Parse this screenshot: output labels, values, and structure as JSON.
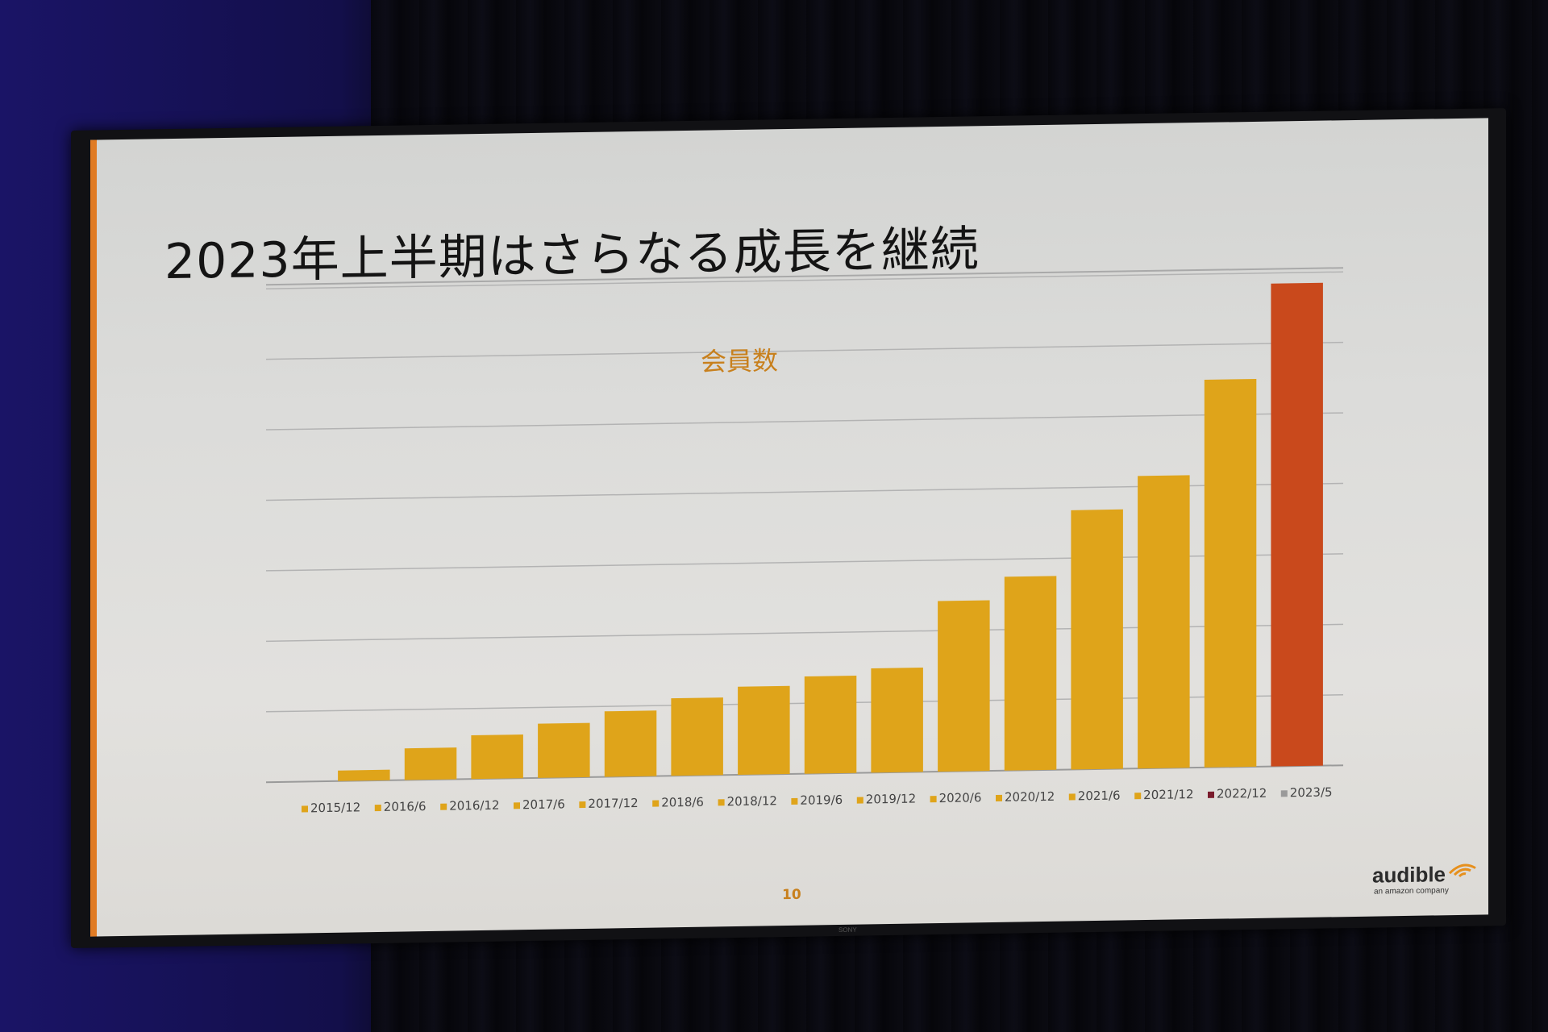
{
  "slide": {
    "title": "2023年上半期はさらなる成長を継続",
    "page_number": "10"
  },
  "logo": {
    "word": "audible",
    "tagline": "an amazon company",
    "icon": "audible-arcs-icon"
  },
  "tv": {
    "brand": "SONY"
  },
  "colors": {
    "bar": "#dfa41a",
    "highlight_bar": "#c9491c",
    "legend_2022_12": "#7a1c2c",
    "legend_2023_5": "#9a9a9a",
    "chart_title": "#c8801d"
  },
  "chart_data": {
    "type": "bar",
    "title": "会員数",
    "xlabel": "",
    "ylabel": "",
    "ylim": [
      0,
      7
    ],
    "grid": true,
    "legend_position": "bottom",
    "categories": [
      "2015/12",
      "2016/6",
      "2016/12",
      "2017/6",
      "2017/12",
      "2018/6",
      "2018/12",
      "2019/6",
      "2019/12",
      "2020/6",
      "2020/12",
      "2021/6",
      "2021/12",
      "2022/12",
      "2023/5"
    ],
    "values": [
      0.15,
      0.45,
      0.62,
      0.77,
      0.93,
      1.1,
      1.25,
      1.38,
      1.48,
      2.42,
      2.75,
      3.68,
      4.15,
      5.5,
      6.85
    ],
    "legend": [
      {
        "label": "2015/12",
        "color": "#dfa41a"
      },
      {
        "label": "2016/6",
        "color": "#dfa41a"
      },
      {
        "label": "2016/12",
        "color": "#dfa41a"
      },
      {
        "label": "2017/6",
        "color": "#dfa41a"
      },
      {
        "label": "2017/12",
        "color": "#dfa41a"
      },
      {
        "label": "2018/6",
        "color": "#dfa41a"
      },
      {
        "label": "2018/12",
        "color": "#dfa41a"
      },
      {
        "label": "2019/6",
        "color": "#dfa41a"
      },
      {
        "label": "2019/12",
        "color": "#dfa41a"
      },
      {
        "label": "2020/6",
        "color": "#dfa41a"
      },
      {
        "label": "2020/12",
        "color": "#dfa41a"
      },
      {
        "label": "2021/6",
        "color": "#dfa41a"
      },
      {
        "label": "2021/12",
        "color": "#dfa41a"
      },
      {
        "label": "2022/12",
        "color": "#7a1c2c"
      },
      {
        "label": "2023/5",
        "color": "#9a9a9a"
      }
    ],
    "highlight_index": 14
  }
}
